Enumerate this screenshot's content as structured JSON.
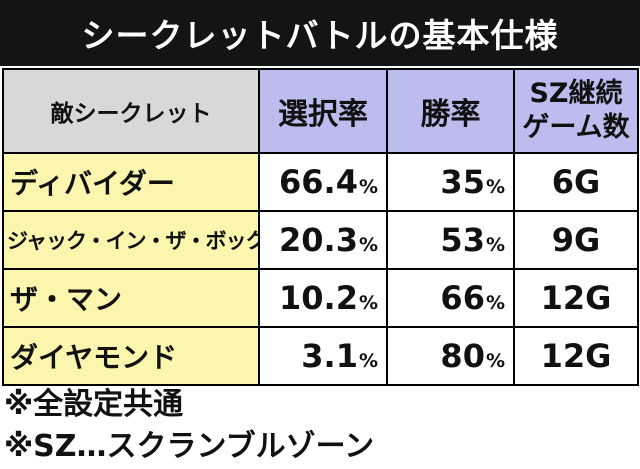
{
  "title": "シークレットバトルの基本仕様",
  "table": {
    "headers": {
      "enemy": "敵シークレット",
      "select_rate": "選択率",
      "win_rate": "勝率",
      "sz_games_line1": "SZ継続",
      "sz_games_line2": "ゲーム数"
    },
    "rows": [
      {
        "enemy": "ディバイダー",
        "select_rate": "66.4",
        "win_rate": "35",
        "sz_games": "6G"
      },
      {
        "enemy": "ジャック・イン・ザ・ボックス",
        "select_rate": "20.3",
        "win_rate": "53",
        "sz_games": "9G"
      },
      {
        "enemy": "ザ・マン",
        "select_rate": "10.2",
        "win_rate": "66",
        "sz_games": "12G"
      },
      {
        "enemy": "ダイヤモンド",
        "select_rate": "3.1",
        "win_rate": "80",
        "sz_games": "12G"
      }
    ],
    "percent_sign": "%"
  },
  "notes": [
    "※全設定共通",
    "※SZ…スクランブルゾーン"
  ],
  "colors": {
    "title_bg": "#141414",
    "header_bg": "#bcbcee",
    "enemy_header_bg": "#d8d8d8",
    "enemy_cell_bg": "#fbf6ae"
  }
}
